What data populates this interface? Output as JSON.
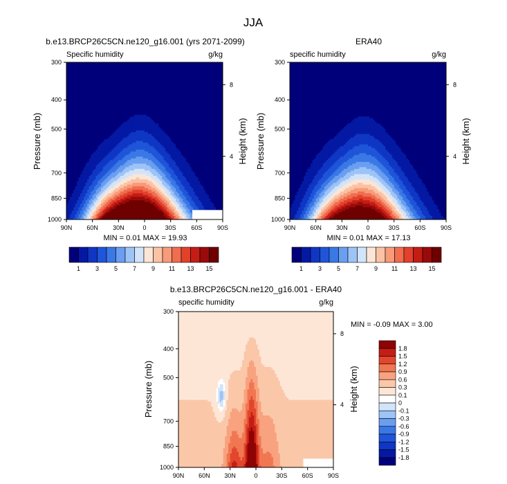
{
  "figure": {
    "title": "JJA"
  },
  "chart_data": [
    {
      "type": "heatmap",
      "title": "b.e13.BRCP26C5CN.ne120_g16.001 (yrs 2071-2099)",
      "subtitle_left": "Specific humidity",
      "subtitle_right": "g/kg",
      "ylabel": "Pressure (mb)",
      "y2label": "Height (km)",
      "x_ticks": [
        "90N",
        "60N",
        "30N",
        "0",
        "30S",
        "60S",
        "90S"
      ],
      "x_values": [
        90,
        60,
        30,
        0,
        -30,
        -60,
        -90
      ],
      "y_ticks": [
        "300",
        "400",
        "500",
        "700",
        "850",
        "1000"
      ],
      "y_values": [
        300,
        400,
        500,
        700,
        850,
        1000
      ],
      "y2_ticks": [
        "8",
        "4"
      ],
      "y2_values": [
        8,
        4
      ],
      "ylim": [
        1000,
        300
      ],
      "stats": "MIN =  0.01  MAX = 19.93",
      "min": 0.01,
      "max": 19.93,
      "peak_lat": 5,
      "contour_levels": [
        1,
        2,
        3,
        4,
        5,
        6,
        7,
        8,
        9,
        10,
        11,
        12,
        13,
        14,
        15
      ],
      "colorbar_labels": [
        "1",
        "3",
        "5",
        "7",
        "9",
        "11",
        "13",
        "15"
      ],
      "missing_region": {
        "lat": [
          -55,
          -90
        ],
        "p": [
          930,
          1000
        ]
      }
    },
    {
      "type": "heatmap",
      "title": "ERA40",
      "subtitle_left": "specific humidity",
      "subtitle_right": "g/kg",
      "ylabel": "Pressure (mb)",
      "y2label": "Height (km)",
      "x_ticks": [
        "90N",
        "60N",
        "30N",
        "0",
        "30S",
        "60S",
        "90S"
      ],
      "x_values": [
        90,
        60,
        30,
        0,
        -30,
        -60,
        -90
      ],
      "y_ticks": [
        "300",
        "400",
        "500",
        "700",
        "850",
        "1000"
      ],
      "y_values": [
        300,
        400,
        500,
        700,
        850,
        1000
      ],
      "y2_ticks": [
        "8",
        "4"
      ],
      "y2_values": [
        8,
        4
      ],
      "ylim": [
        1000,
        300
      ],
      "stats": "MIN =  0.01  MAX = 17.13",
      "min": 0.01,
      "max": 17.13,
      "peak_lat": 5,
      "contour_levels": [
        1,
        2,
        3,
        4,
        5,
        6,
        7,
        8,
        9,
        10,
        11,
        12,
        13,
        14,
        15
      ],
      "colorbar_labels": [
        "1",
        "3",
        "5",
        "7",
        "9",
        "11",
        "13",
        "15"
      ]
    },
    {
      "type": "heatmap",
      "title": "b.e13.BRCP26C5CN.ne120_g16.001 - ERA40",
      "subtitle_left": "specific humidity",
      "subtitle_right": "g/kg",
      "ylabel": "Pressure (mb)",
      "y2label": "Height (km)",
      "x_ticks": [
        "90N",
        "60N",
        "30N",
        "0",
        "30S",
        "60S",
        "90S"
      ],
      "x_values": [
        90,
        60,
        30,
        0,
        -30,
        -60,
        -90
      ],
      "y_ticks": [
        "300",
        "400",
        "500",
        "700",
        "850",
        "1000"
      ],
      "y_values": [
        300,
        400,
        500,
        700,
        850,
        1000
      ],
      "y2_ticks": [
        "8",
        "4"
      ],
      "y2_values": [
        8,
        4
      ],
      "ylim": [
        1000,
        300
      ],
      "stats": "MIN =  -0.09  MAX =  3.00",
      "min": -0.09,
      "max": 3.0,
      "contour_levels": [
        -1.8,
        -1.5,
        -1.2,
        -0.9,
        -0.6,
        -0.3,
        -0.1,
        0,
        0.1,
        0.3,
        0.6,
        0.9,
        1.2,
        1.5,
        1.8
      ],
      "colorbar_labels": [
        "1.8",
        "1.5",
        "1.2",
        "0.9",
        "0.6",
        "0.3",
        "0.1",
        "0",
        "-0.1",
        "-0.3",
        "-0.6",
        "-0.9",
        "-1.2",
        "-1.5",
        "-1.8"
      ],
      "missing_region": {
        "lat": [
          -55,
          -90
        ],
        "p": [
          935,
          1000
        ]
      }
    }
  ],
  "colors": {
    "abs": [
      "#00007a",
      "#0419a3",
      "#0f36c4",
      "#1f55d8",
      "#3a78e6",
      "#6a9ef0",
      "#9ec3f6",
      "#d2e4fa",
      "#fbe6d6",
      "#fbc2a5",
      "#f79b79",
      "#f06d4f",
      "#e2412c",
      "#c41d16",
      "#9b0a0a",
      "#6e0000"
    ],
    "diff": [
      "#00007a",
      "#0419a3",
      "#0f36c4",
      "#1f55d8",
      "#3a78e6",
      "#6a9ef0",
      "#9ec3f6",
      "#d2e4fa",
      "#ffffff",
      "#fde6d6",
      "#fbc7a9",
      "#f8a27f",
      "#f07752",
      "#e2462c",
      "#c41d16",
      "#8e0303"
    ]
  }
}
